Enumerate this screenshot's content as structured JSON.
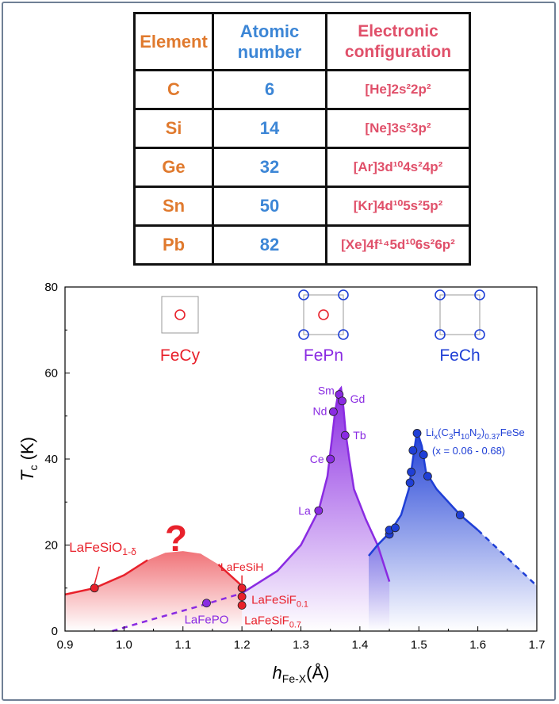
{
  "table": {
    "headers": {
      "element": "Element",
      "atomic": "Atomic number",
      "config": "Electronic configuration"
    },
    "rows": [
      {
        "element": "C",
        "atomic": "6",
        "core": "[He]",
        "config": "2s²2p²"
      },
      {
        "element": "Si",
        "atomic": "14",
        "core": "[Ne]",
        "config": "3s²3p²"
      },
      {
        "element": "Ge",
        "atomic": "32",
        "core": "[Ar]",
        "config": "3d¹⁰4s²4p²"
      },
      {
        "element": "Sn",
        "atomic": "50",
        "core": "[Kr]",
        "config": "4d¹⁰5s²5p²"
      },
      {
        "element": "Pb",
        "atomic": "82",
        "core": "[Xe]",
        "config": "4f¹⁴5d¹⁰6s²6p²"
      }
    ]
  },
  "chart_data": {
    "type": "scatter",
    "xlabel": "h_Fe-X(Å)",
    "ylabel": "T_c (K)",
    "xlim": [
      0.9,
      1.7
    ],
    "ylim": [
      0,
      80
    ],
    "xticks": [
      "0.9",
      "1.0",
      "1.1",
      "1.2",
      "1.3",
      "1.4",
      "1.5",
      "1.6",
      "1.7"
    ],
    "yticks": [
      "0",
      "20",
      "40",
      "60",
      "80"
    ],
    "families": [
      {
        "name": "FeCy",
        "color": "#e8212b"
      },
      {
        "name": "FePn",
        "color": "#8a2be2"
      },
      {
        "name": "FeCh",
        "color": "#1f3fd6"
      }
    ],
    "question_mark": "?",
    "series": [
      {
        "family": "FeCy",
        "color": "#e8212b",
        "points": [
          {
            "label": "LaFeSiO",
            "sub": "1-δ",
            "x": 0.95,
            "y": 10
          },
          {
            "label": "LaFeSiH",
            "sub": "",
            "x": 1.2,
            "y": 10
          },
          {
            "label": "LaFeSiF",
            "sub": "0.1",
            "x": 1.2,
            "y": 8
          },
          {
            "label": "LaFeSiF",
            "sub": "0.7",
            "x": 1.2,
            "y": 6
          }
        ]
      },
      {
        "family": "FePn",
        "color": "#8a2be2",
        "points": [
          {
            "label": "LaFePO",
            "x": 1.14,
            "y": 6.5
          },
          {
            "label": "La",
            "x": 1.33,
            "y": 28
          },
          {
            "label": "Ce",
            "x": 1.35,
            "y": 40
          },
          {
            "label": "Nd",
            "x": 1.355,
            "y": 51
          },
          {
            "label": "Sm",
            "x": 1.365,
            "y": 55
          },
          {
            "label": "Gd",
            "x": 1.37,
            "y": 53.5
          },
          {
            "label": "Tb",
            "x": 1.375,
            "y": 45.5
          }
        ]
      },
      {
        "family": "FeCh",
        "color": "#1f3fd6",
        "annotation": {
          "formula": "Lix(C3H10N2)0.37FeSe",
          "range": "(x = 0.06 - 0.68)"
        },
        "points": [
          {
            "x": 1.45,
            "y": 22.5
          },
          {
            "x": 1.45,
            "y": 23.5
          },
          {
            "x": 1.46,
            "y": 24
          },
          {
            "x": 1.485,
            "y": 34.5
          },
          {
            "x": 1.487,
            "y": 37
          },
          {
            "x": 1.49,
            "y": 42
          },
          {
            "x": 1.497,
            "y": 46
          },
          {
            "x": 1.508,
            "y": 41
          },
          {
            "x": 1.515,
            "y": 36
          },
          {
            "x": 1.57,
            "y": 27
          }
        ]
      }
    ]
  }
}
